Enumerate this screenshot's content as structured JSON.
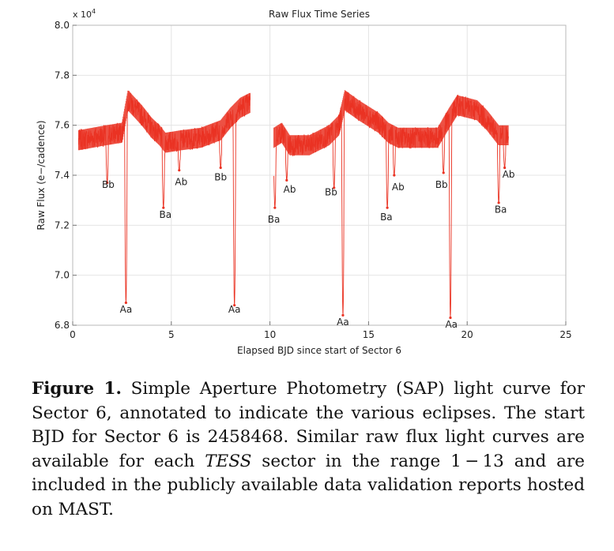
{
  "chart_data": {
    "type": "line",
    "title": "Raw Flux Time Series",
    "xlabel": "Elapsed BJD since start of Sector 6",
    "ylabel": "Raw Flux (e−/cadence)",
    "y_multiplier_label": "x 10",
    "y_multiplier_exp": "4",
    "xlim": [
      0,
      25
    ],
    "ylim": [
      6.8,
      8.0
    ],
    "x_ticks": [
      0,
      5,
      10,
      15,
      20,
      25
    ],
    "y_ticks": [
      6.8,
      7.0,
      7.2,
      7.4,
      7.6,
      7.8,
      8.0
    ],
    "x_tick_labels": [
      "0",
      "5",
      "10",
      "15",
      "20",
      "25"
    ],
    "y_tick_labels": [
      "6.8",
      "7.0",
      "7.2",
      "7.4",
      "7.6",
      "7.8",
      "8.0"
    ],
    "grid": true,
    "series_color": "#ea3323",
    "segments": [
      {
        "x": [
          0.3,
          1.0,
          1.7,
          2.5,
          2.8,
          3.5,
          4.0,
          4.4,
          4.7,
          5.5,
          6.5,
          7.5,
          8.0,
          8.5,
          9.0
        ],
        "y": [
          7.54,
          7.55,
          7.56,
          7.57,
          7.7,
          7.64,
          7.59,
          7.56,
          7.53,
          7.54,
          7.55,
          7.58,
          7.63,
          7.67,
          7.69
        ]
      },
      {
        "x": [
          10.2,
          10.6,
          11.0,
          12.0,
          13.0,
          13.5,
          13.8,
          14.5,
          15.5,
          16.0,
          16.5,
          17.5,
          18.5,
          19.1,
          19.5,
          20.5,
          21.0,
          21.6,
          22.1
        ],
        "y": [
          7.55,
          7.57,
          7.52,
          7.52,
          7.56,
          7.6,
          7.7,
          7.66,
          7.61,
          7.57,
          7.55,
          7.55,
          7.55,
          7.63,
          7.68,
          7.66,
          7.62,
          7.56,
          7.56
        ]
      }
    ],
    "dips": [
      {
        "x": 1.75,
        "y": 7.37
      },
      {
        "x": 2.7,
        "y": 6.89
      },
      {
        "x": 4.6,
        "y": 7.27
      },
      {
        "x": 5.4,
        "y": 7.42
      },
      {
        "x": 7.5,
        "y": 7.43
      },
      {
        "x": 8.2,
        "y": 6.88
      },
      {
        "x": 10.25,
        "y": 7.27
      },
      {
        "x": 10.85,
        "y": 7.38
      },
      {
        "x": 13.25,
        "y": 7.35
      },
      {
        "x": 13.7,
        "y": 6.84
      },
      {
        "x": 15.95,
        "y": 7.27
      },
      {
        "x": 16.3,
        "y": 7.4
      },
      {
        "x": 18.8,
        "y": 7.41
      },
      {
        "x": 19.15,
        "y": 6.83
      },
      {
        "x": 21.6,
        "y": 7.29
      },
      {
        "x": 21.9,
        "y": 7.43
      }
    ],
    "annotations": [
      {
        "text": "Bb",
        "x": 1.8,
        "y": 7.35
      },
      {
        "text": "Aa",
        "x": 2.7,
        "y": 6.85
      },
      {
        "text": "Ba",
        "x": 4.7,
        "y": 7.23
      },
      {
        "text": "Ab",
        "x": 5.5,
        "y": 7.36
      },
      {
        "text": "Bb",
        "x": 7.5,
        "y": 7.38
      },
      {
        "text": "Aa",
        "x": 8.2,
        "y": 6.85
      },
      {
        "text": "Ba",
        "x": 10.2,
        "y": 7.21
      },
      {
        "text": "Ab",
        "x": 11.0,
        "y": 7.33
      },
      {
        "text": "Bb",
        "x": 13.1,
        "y": 7.32
      },
      {
        "text": "Aa",
        "x": 13.7,
        "y": 6.8
      },
      {
        "text": "Ab",
        "x": 16.5,
        "y": 7.34
      },
      {
        "text": "Ba",
        "x": 15.9,
        "y": 7.22
      },
      {
        "text": "Bb",
        "x": 18.7,
        "y": 7.35
      },
      {
        "text": "Aa",
        "x": 19.2,
        "y": 6.79
      },
      {
        "text": "Ab",
        "x": 22.1,
        "y": 7.39
      },
      {
        "text": "Ba",
        "x": 21.7,
        "y": 7.25
      }
    ]
  },
  "caption": {
    "label": "Figure 1.",
    "part1": " Simple Aperture Photometry (SAP) light curve for Sector 6, annotated to indicate the various eclipses. The start BJD for Sector 6 is 2458468. Similar raw flux light curves are available for each ",
    "italic": "TESS",
    "part2": " sector in the range 1 − 13 and are included in the publicly available data validation reports hosted on MAST."
  }
}
